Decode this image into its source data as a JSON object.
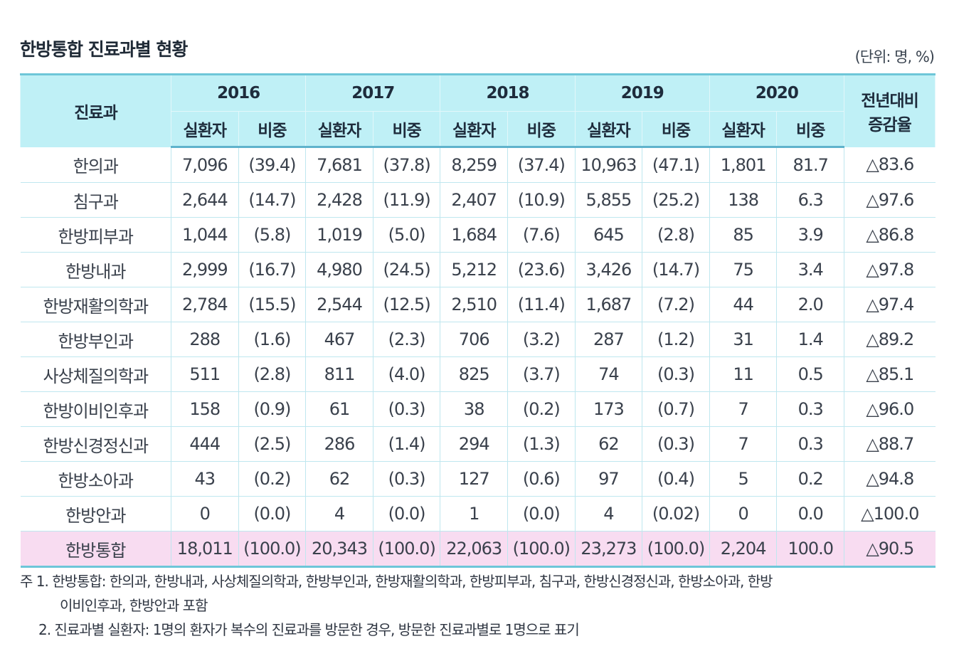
{
  "title": "한방통합 진료과별 현황",
  "unit": "(단위: 명, %)",
  "colors": {
    "header_bg": "#bff0f6",
    "border": "#6ec6d8",
    "total_row_bg": "#f8dcf1"
  },
  "header": {
    "dept": "진료과",
    "years": [
      "2016",
      "2017",
      "2018",
      "2019",
      "2020"
    ],
    "sub": [
      "실환자",
      "비중"
    ],
    "change": "전년대비 증감율"
  },
  "rows": [
    {
      "dept": "한의과",
      "values": [
        "7,096",
        "(39.4)",
        "7,681",
        "(37.8)",
        "8,259",
        "(37.4)",
        "10,963",
        "(47.1)",
        "1,801",
        "81.7"
      ],
      "change": "△83.6"
    },
    {
      "dept": "침구과",
      "values": [
        "2,644",
        "(14.7)",
        "2,428",
        "(11.9)",
        "2,407",
        "(10.9)",
        "5,855",
        "(25.2)",
        "138",
        "6.3"
      ],
      "change": "△97.6"
    },
    {
      "dept": "한방피부과",
      "values": [
        "1,044",
        "(5.8)",
        "1,019",
        "(5.0)",
        "1,684",
        "(7.6)",
        "645",
        "(2.8)",
        "85",
        "3.9"
      ],
      "change": "△86.8"
    },
    {
      "dept": "한방내과",
      "values": [
        "2,999",
        "(16.7)",
        "4,980",
        "(24.5)",
        "5,212",
        "(23.6)",
        "3,426",
        "(14.7)",
        "75",
        "3.4"
      ],
      "change": "△97.8"
    },
    {
      "dept": "한방재활의학과",
      "values": [
        "2,784",
        "(15.5)",
        "2,544",
        "(12.5)",
        "2,510",
        "(11.4)",
        "1,687",
        "(7.2)",
        "44",
        "2.0"
      ],
      "change": "△97.4"
    },
    {
      "dept": "한방부인과",
      "values": [
        "288",
        "(1.6)",
        "467",
        "(2.3)",
        "706",
        "(3.2)",
        "287",
        "(1.2)",
        "31",
        "1.4"
      ],
      "change": "△89.2"
    },
    {
      "dept": "사상체질의학과",
      "values": [
        "511",
        "(2.8)",
        "811",
        "(4.0)",
        "825",
        "(3.7)",
        "74",
        "(0.3)",
        "11",
        "0.5"
      ],
      "change": "△85.1"
    },
    {
      "dept": "한방이비인후과",
      "values": [
        "158",
        "(0.9)",
        "61",
        "(0.3)",
        "38",
        "(0.2)",
        "173",
        "(0.7)",
        "7",
        "0.3"
      ],
      "change": "△96.0"
    },
    {
      "dept": "한방신경정신과",
      "values": [
        "444",
        "(2.5)",
        "286",
        "(1.4)",
        "294",
        "(1.3)",
        "62",
        "(0.3)",
        "7",
        "0.3"
      ],
      "change": "△88.7"
    },
    {
      "dept": "한방소아과",
      "values": [
        "43",
        "(0.2)",
        "62",
        "(0.3)",
        "127",
        "(0.6)",
        "97",
        "(0.4)",
        "5",
        "0.2"
      ],
      "change": "△94.8"
    },
    {
      "dept": "한방안과",
      "values": [
        "0",
        "(0.0)",
        "4",
        "(0.0)",
        "1",
        "(0.0)",
        "4",
        "(0.02)",
        "0",
        "0.0"
      ],
      "change": "△100.0"
    }
  ],
  "total": {
    "dept": "한방통합",
    "values": [
      "18,011",
      "(100.0)",
      "20,343",
      "(100.0)",
      "22,063",
      "(100.0)",
      "23,273",
      "(100.0)",
      "2,204",
      "100.0"
    ],
    "change": "△90.5"
  },
  "notes": {
    "n1_line1": "주 1. 한방통합: 한의과, 한방내과, 사상체질의학과, 한방부인과, 한방재활의학과, 한방피부과, 침구과, 한방신경정신과, 한방소아과, 한방",
    "n1_line2": "이비인후과, 한방안과 포함",
    "n2": "2. 진료과별 실환자: 1명의 환자가 복수의 진료과를  방문한 경우, 방문한 진료과별로 1명으로 표기"
  }
}
